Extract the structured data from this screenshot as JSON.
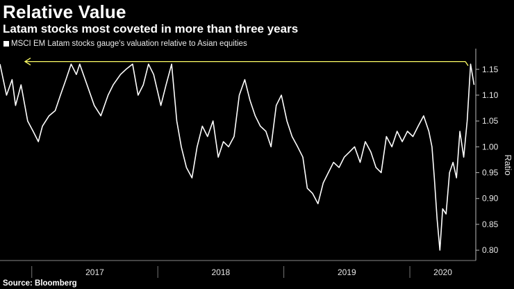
{
  "title": "Relative Value",
  "subtitle": "Latam stocks most coveted in more than three years",
  "source": "Source: Bloomberg",
  "chart_data": {
    "type": "line",
    "series": [
      {
        "name": "MSCI EM Latam stocks gauge's valuation relative to Asian equities",
        "color": "#ffffff",
        "x": [
          "2016-10-01",
          "2016-10-20",
          "2016-11-05",
          "2016-11-15",
          "2016-12-01",
          "2016-12-20",
          "2017-01-05",
          "2017-01-20",
          "2017-02-01",
          "2017-02-20",
          "2017-03-10",
          "2017-03-25",
          "2017-04-10",
          "2017-04-25",
          "2017-05-10",
          "2017-05-20",
          "2017-06-10",
          "2017-07-01",
          "2017-07-20",
          "2017-08-10",
          "2017-08-25",
          "2017-09-15",
          "2017-10-01",
          "2017-10-20",
          "2017-11-05",
          "2017-11-20",
          "2017-12-05",
          "2017-12-20",
          "2018-01-10",
          "2018-01-25",
          "2018-02-10",
          "2018-02-25",
          "2018-03-10",
          "2018-03-25",
          "2018-04-10",
          "2018-04-25",
          "2018-05-10",
          "2018-05-25",
          "2018-06-10",
          "2018-06-25",
          "2018-07-10",
          "2018-07-25",
          "2018-08-10",
          "2018-08-25",
          "2018-09-10",
          "2018-09-25",
          "2018-10-10",
          "2018-10-25",
          "2018-11-10",
          "2018-11-25",
          "2018-12-10",
          "2018-12-25",
          "2019-01-10",
          "2019-01-25",
          "2019-02-10",
          "2019-02-25",
          "2019-03-10",
          "2019-03-25",
          "2019-04-10",
          "2019-04-25",
          "2019-05-10",
          "2019-05-25",
          "2019-06-10",
          "2019-06-25",
          "2019-07-10",
          "2019-07-25",
          "2019-08-10",
          "2019-08-25",
          "2019-09-10",
          "2019-09-25",
          "2019-10-10",
          "2019-10-25",
          "2019-11-10",
          "2019-11-25",
          "2019-12-10",
          "2019-12-25",
          "2020-01-10",
          "2020-01-25",
          "2020-02-10",
          "2020-02-25",
          "2020-03-05",
          "2020-03-12",
          "2020-03-20",
          "2020-03-28",
          "2020-04-05",
          "2020-04-15",
          "2020-04-25",
          "2020-05-05",
          "2020-05-15",
          "2020-05-25",
          "2020-06-05",
          "2020-06-15",
          "2020-06-25",
          "2020-07-05"
        ],
        "y": [
          1.16,
          1.1,
          1.13,
          1.08,
          1.12,
          1.05,
          1.03,
          1.01,
          1.04,
          1.06,
          1.07,
          1.1,
          1.13,
          1.16,
          1.14,
          1.16,
          1.12,
          1.08,
          1.06,
          1.1,
          1.12,
          1.14,
          1.15,
          1.16,
          1.1,
          1.12,
          1.16,
          1.14,
          1.08,
          1.12,
          1.16,
          1.05,
          1.0,
          0.96,
          0.94,
          1.0,
          1.04,
          1.02,
          1.05,
          0.98,
          1.01,
          1.0,
          1.02,
          1.1,
          1.13,
          1.09,
          1.06,
          1.04,
          1.03,
          1.0,
          1.08,
          1.1,
          1.05,
          1.02,
          1.0,
          0.98,
          0.92,
          0.91,
          0.89,
          0.93,
          0.95,
          0.97,
          0.96,
          0.98,
          0.99,
          1.0,
          0.97,
          1.01,
          0.99,
          0.96,
          0.95,
          1.02,
          1.0,
          1.03,
          1.01,
          1.03,
          1.02,
          1.04,
          1.06,
          1.03,
          1.0,
          0.94,
          0.86,
          0.8,
          0.88,
          0.87,
          0.95,
          0.97,
          0.94,
          1.03,
          0.98,
          1.05,
          1.16,
          1.12
        ]
      }
    ],
    "annotations": [
      {
        "type": "horizontal-arrow",
        "y": 1.165,
        "color": "#ffff66",
        "direction": "left"
      }
    ],
    "x_ticks": [
      "2017",
      "2018",
      "2019",
      "2020"
    ],
    "y_ticks": [
      0.8,
      0.85,
      0.9,
      0.95,
      1.0,
      1.05,
      1.1,
      1.15
    ],
    "ylim": [
      0.78,
      1.19
    ],
    "xlim": [
      "2016-10-01",
      "2020-07-10"
    ],
    "ylabel": "Ratio",
    "y_axis_position": "right",
    "grid": false,
    "legend_position": "top-left"
  }
}
